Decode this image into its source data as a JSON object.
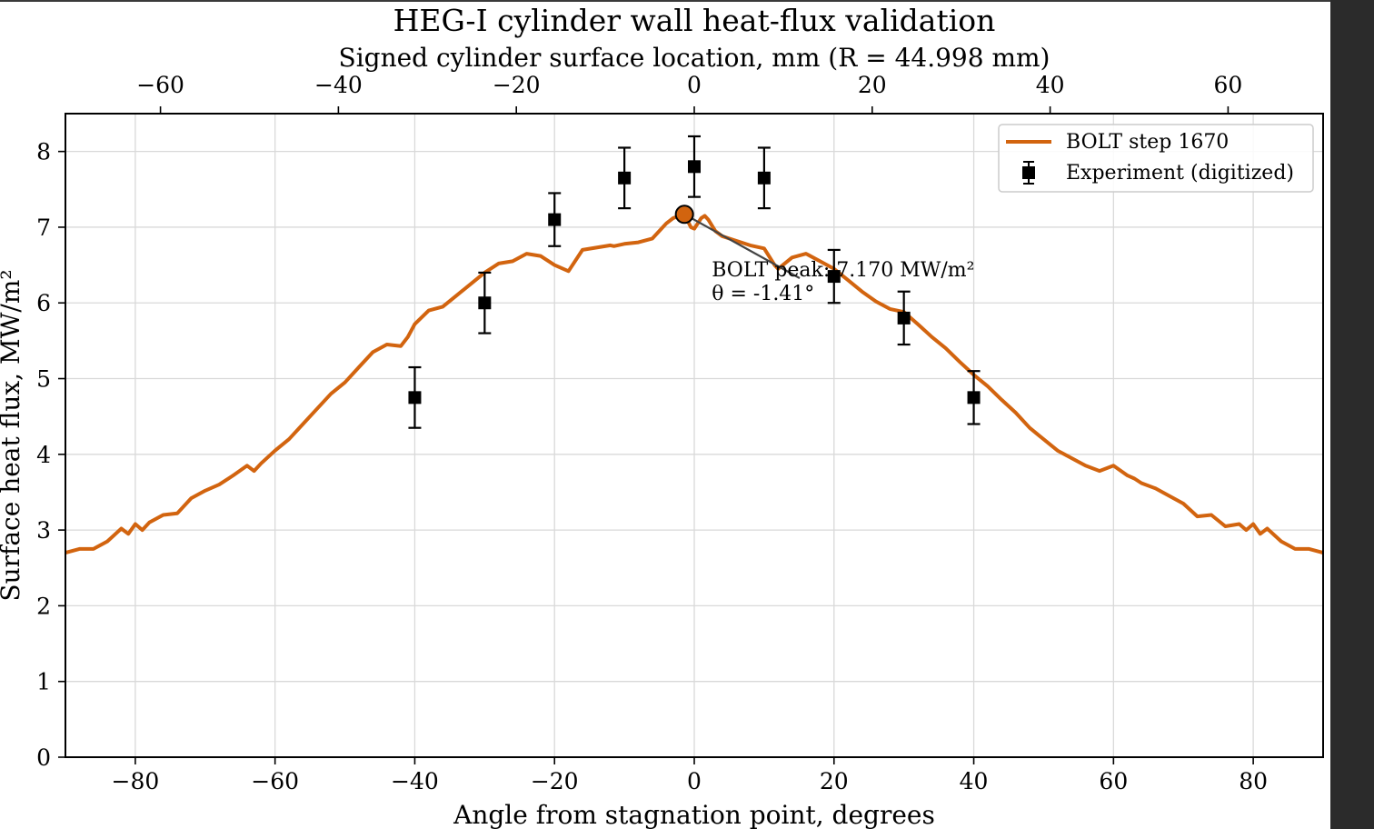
{
  "chart_data": {
    "type": "line",
    "title": "HEG-I cylinder wall heat-flux validation",
    "xlabel": "Angle from stagnation point, degrees",
    "ylabel": "Surface heat flux, MW/m²",
    "xlim": [
      -90,
      90
    ],
    "ylim": [
      0,
      8.5
    ],
    "x_ticks": [
      -80,
      -60,
      -40,
      -20,
      0,
      20,
      40,
      60,
      80
    ],
    "y_ticks": [
      0,
      1,
      2,
      3,
      4,
      5,
      6,
      7,
      8
    ],
    "grid": true,
    "secondary_x_axis": {
      "position": "top",
      "label": "Signed cylinder surface location, mm (R = 44.998 mm)",
      "ticks": [
        -60,
        -40,
        -20,
        0,
        20,
        40,
        60
      ],
      "units_per_degree": 0.785363
    },
    "legend": {
      "position": "top-right",
      "entries": [
        "BOLT step 1670",
        "Experiment (digitized)"
      ]
    },
    "series": [
      {
        "name": "BOLT step 1670",
        "kind": "line",
        "color": "#d2640f",
        "x": [
          -90,
          -88,
          -86,
          -84,
          -82,
          -81,
          -80,
          -79,
          -78,
          -76,
          -74,
          -72,
          -70,
          -68,
          -66,
          -64,
          -63,
          -62,
          -60,
          -58,
          -56,
          -54,
          -52,
          -50,
          -48,
          -46,
          -44,
          -42,
          -41,
          -40,
          -38,
          -36,
          -34,
          -32,
          -30,
          -28,
          -26,
          -24,
          -22,
          -20,
          -18,
          -16,
          -14,
          -12,
          -11.5,
          -10,
          -8,
          -6,
          -4,
          -3,
          -1.41,
          -0.5,
          0,
          1,
          1.5,
          2,
          3,
          4,
          6,
          8,
          10,
          11.5,
          12,
          14,
          16,
          18,
          20,
          22,
          24,
          26,
          28,
          30,
          32,
          34,
          36,
          38,
          40,
          42,
          44,
          46,
          48,
          50,
          52,
          54,
          56,
          58,
          60,
          62,
          63,
          64,
          66,
          68,
          70,
          72,
          74,
          76,
          78,
          79,
          80,
          81,
          82,
          84,
          86,
          88,
          90
        ],
        "y": [
          2.7,
          2.75,
          2.75,
          2.85,
          3.02,
          2.95,
          3.08,
          3.0,
          3.1,
          3.2,
          3.22,
          3.42,
          3.52,
          3.6,
          3.72,
          3.85,
          3.78,
          3.88,
          4.05,
          4.2,
          4.4,
          4.6,
          4.8,
          4.95,
          5.15,
          5.35,
          5.45,
          5.43,
          5.55,
          5.72,
          5.9,
          5.95,
          6.1,
          6.25,
          6.4,
          6.52,
          6.55,
          6.65,
          6.62,
          6.5,
          6.42,
          6.7,
          6.73,
          6.76,
          6.75,
          6.78,
          6.8,
          6.85,
          7.05,
          7.12,
          7.17,
          7.0,
          6.98,
          7.12,
          7.15,
          7.1,
          6.95,
          6.88,
          6.82,
          6.76,
          6.72,
          6.5,
          6.45,
          6.6,
          6.65,
          6.55,
          6.45,
          6.3,
          6.15,
          6.02,
          5.92,
          5.88,
          5.72,
          5.55,
          5.4,
          5.22,
          5.05,
          4.9,
          4.72,
          4.55,
          4.35,
          4.2,
          4.05,
          3.95,
          3.85,
          3.78,
          3.85,
          3.72,
          3.68,
          3.62,
          3.55,
          3.45,
          3.35,
          3.18,
          3.2,
          3.05,
          3.08,
          3.0,
          3.08,
          2.95,
          3.02,
          2.85,
          2.75,
          2.75,
          2.7
        ]
      },
      {
        "name": "Experiment (digitized)",
        "kind": "errorbar",
        "marker": "square",
        "color": "#000000",
        "x": [
          -40,
          -30,
          -20,
          -10,
          0,
          10,
          20,
          30,
          40
        ],
        "y": [
          4.75,
          6.0,
          7.1,
          7.65,
          7.8,
          7.65,
          6.35,
          5.8,
          4.75
        ],
        "yerr": [
          0.4,
          0.4,
          0.35,
          0.4,
          0.4,
          0.4,
          0.35,
          0.35,
          0.35
        ]
      }
    ],
    "annotation": {
      "point": [
        -1.41,
        7.17
      ],
      "text_position": [
        2.5,
        6.35
      ],
      "lines": [
        "BOLT peak: 7.170 MW/m²",
        "θ = -1.41°"
      ]
    }
  }
}
